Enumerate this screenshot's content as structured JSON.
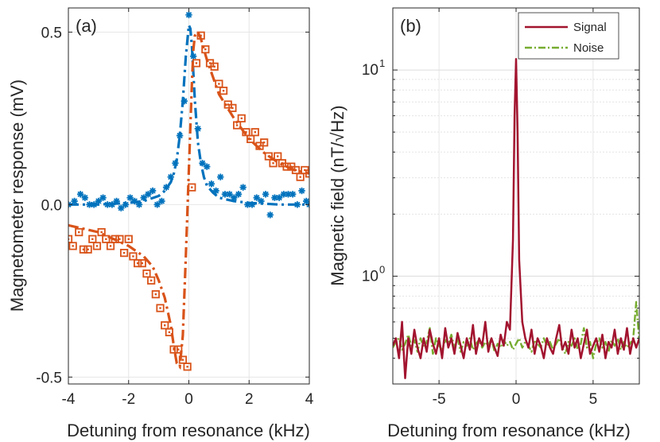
{
  "chart_data": [
    {
      "panel": "(a)",
      "type": "scatter",
      "xlabel": "Detuning from resonance (kHz)",
      "ylabel": "Magnetometer response (mV)",
      "xlim": [
        -4,
        4
      ],
      "ylim": [
        -0.52,
        0.57
      ],
      "xticks": [
        -4,
        -2,
        0,
        2,
        4
      ],
      "xtick_labels": [
        "-4",
        "-2",
        "0",
        "2",
        "4"
      ],
      "yticks": [
        -0.5,
        0,
        0.5
      ],
      "ytick_labels": [
        "-0.5",
        "0.0",
        "0.5"
      ],
      "grid": true,
      "colors": {
        "in_phase": "#0072BD",
        "quadrature": "#D95319"
      },
      "series": [
        {
          "kind": "points",
          "marker": "asterisk",
          "color": "#0072BD",
          "x": [
            -4.0,
            -3.8,
            -3.6,
            -3.45,
            -3.3,
            -3.15,
            -3.0,
            -2.85,
            -2.7,
            -2.55,
            -2.4,
            -2.25,
            -2.1,
            -1.95,
            -1.8,
            -1.65,
            -1.5,
            -1.35,
            -1.2,
            -1.05,
            -0.9,
            -0.75,
            -0.6,
            -0.45,
            -0.3,
            -0.15,
            0.0,
            0.15,
            0.3,
            0.45,
            0.6,
            0.75,
            0.9,
            1.05,
            1.2,
            1.35,
            1.5,
            1.65,
            1.8,
            1.95,
            2.1,
            2.25,
            2.4,
            2.55,
            2.7,
            2.85,
            3.0,
            3.15,
            3.3,
            3.45,
            3.6,
            3.75,
            3.9,
            4.0
          ],
          "y": [
            0.0,
            0.01,
            0.03,
            0.02,
            0.0,
            0.0,
            0.01,
            0.02,
            0.0,
            0.0,
            0.01,
            -0.01,
            0.0,
            0.02,
            0.01,
            0.0,
            0.02,
            0.03,
            0.04,
            0.0,
            0.01,
            0.05,
            0.08,
            0.12,
            0.2,
            0.3,
            0.55,
            0.43,
            0.22,
            0.12,
            0.11,
            0.06,
            0.04,
            0.08,
            0.03,
            0.03,
            0.02,
            0.03,
            0.05,
            0.0,
            0.0,
            0.02,
            0.01,
            0.03,
            -0.03,
            0.02,
            0.02,
            0.03,
            0.03,
            0.03,
            0.0,
            0.04,
            0.01,
            0.0
          ]
        },
        {
          "kind": "points",
          "marker": "square-dot",
          "color": "#D95319",
          "x": [
            -4.0,
            -3.85,
            -3.65,
            -3.5,
            -3.35,
            -3.2,
            -3.05,
            -2.9,
            -2.75,
            -2.6,
            -2.45,
            -2.3,
            -2.15,
            -2.0,
            -1.85,
            -1.7,
            -1.55,
            -1.4,
            -1.25,
            -1.1,
            -0.95,
            -0.8,
            -0.65,
            -0.5,
            -0.35,
            -0.2,
            -0.05,
            0.1,
            0.25,
            0.4,
            0.55,
            0.7,
            0.85,
            1.0,
            1.15,
            1.3,
            1.45,
            1.6,
            1.75,
            1.9,
            2.05,
            2.2,
            2.35,
            2.5,
            2.65,
            2.8,
            2.95,
            3.1,
            3.25,
            3.4,
            3.55,
            3.7,
            3.85,
            4.0
          ],
          "y": [
            -0.1,
            -0.12,
            -0.08,
            -0.13,
            -0.13,
            -0.1,
            -0.12,
            -0.08,
            -0.1,
            -0.12,
            -0.1,
            -0.1,
            -0.14,
            -0.1,
            -0.15,
            -0.17,
            -0.17,
            -0.2,
            -0.22,
            -0.26,
            -0.3,
            -0.35,
            -0.37,
            -0.42,
            -0.42,
            -0.45,
            -0.47,
            0.05,
            0.41,
            0.49,
            0.45,
            0.41,
            0.4,
            0.35,
            0.33,
            0.29,
            0.28,
            0.23,
            0.25,
            0.21,
            0.19,
            0.21,
            0.17,
            0.18,
            0.14,
            0.12,
            0.14,
            0.12,
            0.11,
            0.11,
            0.1,
            0.08,
            0.1,
            0.09
          ]
        },
        {
          "kind": "fit",
          "style": "dashdot",
          "color": "#0072BD",
          "x": [
            -4.0,
            -3.0,
            -2.0,
            -1.5,
            -1.0,
            -0.8,
            -0.6,
            -0.5,
            -0.4,
            -0.3,
            -0.2,
            -0.1,
            0.0,
            0.05,
            0.1,
            0.15,
            0.2,
            0.3,
            0.4,
            0.5,
            0.6,
            0.8,
            1.0,
            1.5,
            2.0,
            3.0,
            4.0
          ],
          "y": [
            0.0,
            0.0,
            0.005,
            0.01,
            0.025,
            0.04,
            0.065,
            0.09,
            0.13,
            0.2,
            0.3,
            0.43,
            0.52,
            0.51,
            0.46,
            0.38,
            0.3,
            0.18,
            0.12,
            0.08,
            0.055,
            0.035,
            0.02,
            0.01,
            0.005,
            0.0,
            0.0
          ]
        },
        {
          "kind": "fit",
          "style": "dashdot",
          "color": "#D95319",
          "x": [
            -4.0,
            -3.0,
            -2.5,
            -2.0,
            -1.5,
            -1.2,
            -1.0,
            -0.8,
            -0.6,
            -0.5,
            -0.4,
            -0.3,
            -0.2,
            -0.1,
            0.0,
            0.1,
            0.15,
            0.2,
            0.3,
            0.4,
            0.5,
            0.6,
            0.8,
            1.0,
            1.5,
            2.0,
            2.5,
            3.0,
            3.5,
            4.0
          ],
          "y": [
            -0.06,
            -0.08,
            -0.1,
            -0.12,
            -0.15,
            -0.18,
            -0.22,
            -0.27,
            -0.35,
            -0.41,
            -0.46,
            -0.47,
            -0.38,
            -0.15,
            0.1,
            0.35,
            0.45,
            0.49,
            0.5,
            0.48,
            0.45,
            0.42,
            0.37,
            0.32,
            0.25,
            0.19,
            0.15,
            0.12,
            0.1,
            0.09
          ]
        }
      ]
    },
    {
      "panel": "(b)",
      "type": "line",
      "xlabel": "Detuning from resonance (kHz)",
      "ylabel": "Magnetic field (nT/√Hz)",
      "xlim": [
        -8,
        8
      ],
      "ylim": [
        0.3,
        20
      ],
      "yscale": "log",
      "xticks": [
        -5,
        0,
        5
      ],
      "xtick_labels": [
        "-5",
        "0",
        "5"
      ],
      "yticks": [
        1,
        10
      ],
      "ytick_labels": [
        {
          "base": "10",
          "exp": "0"
        },
        {
          "base": "10",
          "exp": "1"
        }
      ],
      "grid": true,
      "legend_position": "top-right",
      "series": [
        {
          "name": "Signal",
          "color": "#A2142F",
          "style": "solid",
          "x": [
            -8.0,
            -7.8,
            -7.6,
            -7.4,
            -7.2,
            -7.0,
            -6.8,
            -6.6,
            -6.4,
            -6.2,
            -6.0,
            -5.8,
            -5.6,
            -5.4,
            -5.2,
            -5.0,
            -4.8,
            -4.6,
            -4.4,
            -4.2,
            -4.0,
            -3.8,
            -3.6,
            -3.4,
            -3.2,
            -3.0,
            -2.8,
            -2.6,
            -2.4,
            -2.2,
            -2.0,
            -1.8,
            -1.6,
            -1.4,
            -1.2,
            -1.0,
            -0.8,
            -0.6,
            -0.4,
            -0.2,
            -0.1,
            0.0,
            0.1,
            0.2,
            0.4,
            0.6,
            0.8,
            1.0,
            1.2,
            1.4,
            1.6,
            1.8,
            2.0,
            2.2,
            2.4,
            2.6,
            2.8,
            3.0,
            3.2,
            3.4,
            3.6,
            3.8,
            4.0,
            4.2,
            4.4,
            4.6,
            4.8,
            5.0,
            5.2,
            5.4,
            5.6,
            5.8,
            6.0,
            6.2,
            6.4,
            6.6,
            6.8,
            7.0,
            7.2,
            7.4,
            7.6,
            7.8,
            8.0
          ],
          "y": [
            0.46,
            0.5,
            0.4,
            0.6,
            0.32,
            0.5,
            0.42,
            0.55,
            0.45,
            0.4,
            0.5,
            0.43,
            0.55,
            0.47,
            0.42,
            0.5,
            0.4,
            0.56,
            0.45,
            0.5,
            0.42,
            0.53,
            0.46,
            0.4,
            0.5,
            0.44,
            0.58,
            0.42,
            0.5,
            0.46,
            0.6,
            0.43,
            0.5,
            0.45,
            0.41,
            0.52,
            0.46,
            0.6,
            0.55,
            1.5,
            6.0,
            11.3,
            5.0,
            1.2,
            0.6,
            0.5,
            0.45,
            0.55,
            0.42,
            0.5,
            0.46,
            0.4,
            0.5,
            0.45,
            0.42,
            0.5,
            0.58,
            0.44,
            0.48,
            0.42,
            0.55,
            0.45,
            0.5,
            0.4,
            0.47,
            0.55,
            0.42,
            0.46,
            0.5,
            0.43,
            0.52,
            0.4,
            0.48,
            0.45,
            0.55,
            0.42,
            0.5,
            0.44,
            0.56,
            0.42,
            0.5,
            0.45,
            0.5
          ]
        },
        {
          "name": "Noise",
          "color": "#77AC30",
          "style": "dashdot",
          "x": [
            -8.0,
            -7.8,
            -7.6,
            -7.4,
            -7.2,
            -7.0,
            -6.8,
            -6.6,
            -6.4,
            -6.2,
            -6.0,
            -5.8,
            -5.6,
            -5.4,
            -5.2,
            -5.0,
            -4.8,
            -4.6,
            -4.4,
            -4.2,
            -4.0,
            -3.8,
            -3.6,
            -3.4,
            -3.2,
            -3.0,
            -2.8,
            -2.6,
            -2.4,
            -2.2,
            -2.0,
            -1.8,
            -1.6,
            -1.4,
            -1.2,
            -1.0,
            -0.8,
            -0.6,
            -0.4,
            -0.2,
            0.0,
            0.2,
            0.4,
            0.6,
            0.8,
            1.0,
            1.2,
            1.4,
            1.6,
            1.8,
            2.0,
            2.2,
            2.4,
            2.6,
            2.8,
            3.0,
            3.2,
            3.4,
            3.6,
            3.8,
            4.0,
            4.2,
            4.4,
            4.6,
            4.8,
            5.0,
            5.2,
            5.4,
            5.6,
            5.8,
            6.0,
            6.2,
            6.4,
            6.6,
            6.8,
            7.0,
            7.2,
            7.4,
            7.6,
            7.8,
            8.0
          ],
          "y": [
            0.45,
            0.48,
            0.5,
            0.44,
            0.47,
            0.52,
            0.46,
            0.49,
            0.43,
            0.5,
            0.45,
            0.48,
            0.56,
            0.42,
            0.5,
            0.46,
            0.44,
            0.49,
            0.47,
            0.52,
            0.45,
            0.5,
            0.43,
            0.48,
            0.46,
            0.5,
            0.44,
            0.47,
            0.49,
            0.45,
            0.48,
            0.46,
            0.5,
            0.43,
            0.47,
            0.45,
            0.49,
            0.46,
            0.48,
            0.44,
            0.47,
            0.5,
            0.45,
            0.48,
            0.46,
            0.43,
            0.49,
            0.47,
            0.45,
            0.5,
            0.46,
            0.48,
            0.44,
            0.47,
            0.5,
            0.45,
            0.42,
            0.48,
            0.46,
            0.5,
            0.44,
            0.47,
            0.56,
            0.45,
            0.48,
            0.4,
            0.47,
            0.5,
            0.45,
            0.48,
            0.43,
            0.49,
            0.46,
            0.5,
            0.44,
            0.48,
            0.45,
            0.47,
            0.5,
            0.75,
            0.48
          ]
        }
      ]
    }
  ]
}
